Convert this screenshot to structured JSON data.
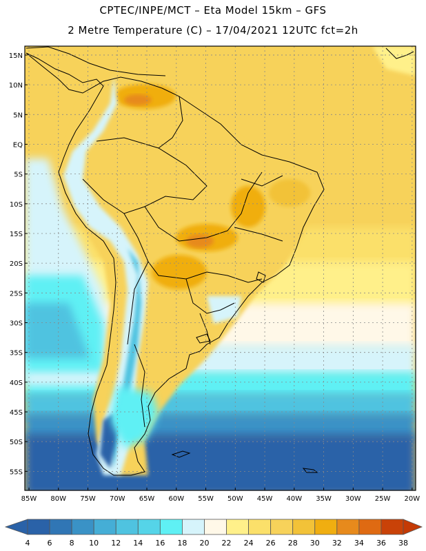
{
  "header": {
    "line1": "CPTEC/INPE/MCT –  Eta Model 15km – GFS",
    "line2": "2 Metre Temperature (C) – 17/04/2021 12UTC fct=2h"
  },
  "map": {
    "lat_labels": [
      "15N",
      "10N",
      "5N",
      "EQ",
      "5S",
      "10S",
      "15S",
      "20S",
      "25S",
      "30S",
      "35S",
      "40S",
      "45S",
      "50S",
      "55S"
    ],
    "lon_labels": [
      "85W",
      "80W",
      "75W",
      "70W",
      "65W",
      "60W",
      "55W",
      "50W",
      "45W",
      "40W",
      "35W",
      "30W",
      "25W",
      "20W"
    ]
  },
  "legend": {
    "ticks": [
      "4",
      "6",
      "8",
      "10",
      "12",
      "14",
      "16",
      "18",
      "20",
      "22",
      "24",
      "26",
      "28",
      "30",
      "32",
      "34",
      "36",
      "38"
    ],
    "colors": [
      "#2a62a8",
      "#3076b5",
      "#3a92c6",
      "#45aed6",
      "#4fc3e0",
      "#55d4e8",
      "#5ff0f4",
      "#d6f4fb",
      "#fff8e8",
      "#fff08a",
      "#fbe06a",
      "#f7d25a",
      "#f2c238",
      "#f0ae10",
      "#e78a1c",
      "#df6a12",
      "#c94208"
    ],
    "under_color": "#2a62a8",
    "over_color": "#c43a05"
  }
}
